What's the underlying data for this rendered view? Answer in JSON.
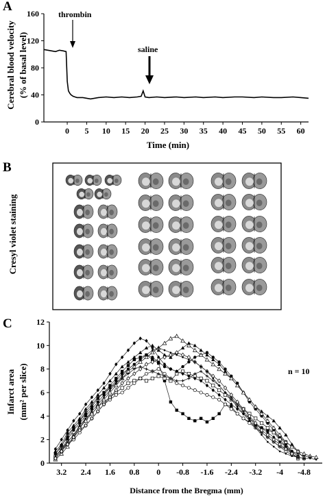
{
  "figure": {
    "panel_a": {
      "label": "A",
      "ylabel_line1": "Cerebral blood velocity",
      "ylabel_line2": "(% of basal level)",
      "xlabel": "Time (min)",
      "annotations": {
        "thrombin": "thrombin",
        "saline": "saline"
      }
    },
    "panel_b": {
      "label": "B",
      "ylabel": "Cresyl violet staining"
    },
    "panel_c": {
      "label": "C",
      "ylabel_line1": "Infarct area",
      "ylabel_line2": "(mm² per slice)",
      "xlabel": "Distance from the Bregma (mm)",
      "n_label": "n = 10"
    }
  },
  "chart_data": [
    {
      "type": "line",
      "panel": "A",
      "xlabel": "Time (min)",
      "ylabel": "Cerebral blood velocity (% of basal level)",
      "xlim": [
        -6,
        62
      ],
      "ylim": [
        0,
        160
      ],
      "xticks": [
        0,
        5,
        10,
        15,
        20,
        25,
        30,
        35,
        40,
        45,
        50,
        55,
        60
      ],
      "yticks": [
        0,
        40,
        80,
        120,
        160
      ],
      "series": [
        {
          "x": [
            -6,
            -5,
            -4,
            -3,
            -2,
            -1,
            -0.3,
            0,
            0.3,
            0.7,
            1,
            1.5,
            2,
            2.5,
            3,
            4,
            5,
            6,
            8,
            10,
            12,
            14,
            16,
            18,
            19,
            19.5,
            20,
            21,
            23,
            25,
            28,
            30,
            33,
            35,
            38,
            40,
            43,
            45,
            48,
            50,
            53,
            55,
            58,
            60,
            62
          ],
          "y": [
            107,
            106,
            105,
            104,
            106,
            105,
            104,
            60,
            46,
            42,
            40,
            38,
            37,
            36,
            36,
            36,
            35,
            34,
            36,
            37,
            36,
            37,
            36,
            37,
            38,
            46,
            37,
            36,
            37,
            36,
            37,
            36,
            37,
            36,
            37,
            36,
            37,
            37,
            36,
            37,
            36,
            36,
            37,
            36,
            35
          ]
        }
      ],
      "grid": false
    },
    {
      "type": "line",
      "panel": "C",
      "xlabel": "Distance from the Bregma (mm)",
      "ylabel": "Infarct area (mm² per slice)",
      "xlim": [
        3.6,
        -5.4
      ],
      "ylim": [
        0,
        12
      ],
      "xticks": [
        3.2,
        2.4,
        1.6,
        0.8,
        0,
        -0.8,
        -1.6,
        -2.4,
        -3.2,
        -4,
        -4.8
      ],
      "xtick_labels": [
        "3.2",
        "2.4",
        "1.6",
        "0.8",
        "0",
        "-0.8",
        "-1.6",
        "-2.4",
        "-3.2",
        "-4",
        "-4.8"
      ],
      "yticks": [
        0,
        2,
        4,
        6,
        8,
        10,
        12
      ],
      "x": [
        3.4,
        3.2,
        3.0,
        2.8,
        2.6,
        2.4,
        2.2,
        2.0,
        1.8,
        1.6,
        1.4,
        1.2,
        1.0,
        0.8,
        0.6,
        0.4,
        0.2,
        0.0,
        -0.2,
        -0.4,
        -0.6,
        -0.8,
        -1.0,
        -1.2,
        -1.4,
        -1.6,
        -1.8,
        -2.0,
        -2.2,
        -2.4,
        -2.6,
        -2.8,
        -3.0,
        -3.2,
        -3.4,
        -3.6,
        -3.8,
        -4.0,
        -4.2,
        -4.4,
        -4.6,
        -4.8,
        -5.0,
        -5.2
      ],
      "series": [
        {
          "marker": "filled-square",
          "values": [
            0.8,
            1.5,
            2.2,
            3.0,
            3.6,
            4.2,
            4.8,
            5.5,
            6.0,
            6.6,
            7.2,
            7.8,
            8.3,
            8.8,
            9.0,
            9.2,
            8.8,
            8.5,
            7.0,
            5.2,
            4.5,
            4.2,
            3.8,
            3.6,
            3.8,
            3.5,
            3.8,
            4.2,
            5.0,
            4.8,
            4.2,
            3.8,
            3.5,
            3.2,
            3.0,
            2.8,
            2.6,
            2.2,
            1.8,
            1.4,
            1.0,
            null,
            null,
            null
          ]
        },
        {
          "marker": "filled-circle",
          "values": [
            0.5,
            1.2,
            2.0,
            2.8,
            3.4,
            4.0,
            4.6,
            5.2,
            5.8,
            6.4,
            7.0,
            7.6,
            8.0,
            8.4,
            8.8,
            9.2,
            9.0,
            8.6,
            8.2,
            8.0,
            7.8,
            8.2,
            8.6,
            9.0,
            9.2,
            9.4,
            9.0,
            8.6,
            8.0,
            7.4,
            6.8,
            6.0,
            5.2,
            4.6,
            4.0,
            3.4,
            2.8,
            2.2,
            1.6,
            1.0,
            0.6,
            null,
            null,
            null
          ]
        },
        {
          "marker": "open-square",
          "values": [
            0.4,
            1.0,
            1.8,
            2.4,
            3.0,
            3.8,
            4.2,
            4.8,
            5.2,
            5.6,
            6.0,
            6.4,
            6.8,
            7.0,
            7.2,
            7.0,
            7.2,
            7.4,
            7.2,
            7.0,
            7.6,
            7.8,
            7.6,
            7.4,
            7.2,
            7.0,
            6.6,
            6.2,
            5.8,
            5.4,
            5.0,
            4.6,
            4.2,
            3.8,
            3.4,
            3.0,
            2.6,
            2.0,
            1.4,
            0.8,
            0.4,
            null,
            null,
            null
          ]
        },
        {
          "marker": "open-circle",
          "values": [
            0.6,
            1.2,
            1.6,
            2.0,
            2.6,
            3.2,
            3.8,
            4.4,
            5.0,
            5.4,
            5.8,
            6.0,
            6.4,
            6.8,
            7.2,
            7.6,
            7.8,
            8.0,
            7.6,
            7.2,
            6.8,
            6.6,
            6.4,
            6.2,
            6.0,
            5.8,
            5.6,
            5.4,
            5.0,
            4.6,
            4.2,
            3.8,
            3.4,
            3.0,
            2.6,
            2.2,
            1.8,
            1.4,
            1.0,
            0.7,
            0.5,
            0.4,
            null,
            null
          ]
        },
        {
          "marker": "filled-triangle",
          "values": [
            1.0,
            1.6,
            2.6,
            3.2,
            3.8,
            4.6,
            5.2,
            5.8,
            6.4,
            7.0,
            7.6,
            8.2,
            8.6,
            9.0,
            9.4,
            9.8,
            10.0,
            9.6,
            9.2,
            9.0,
            9.4,
            9.8,
            10.2,
            10.0,
            9.6,
            9.2,
            8.8,
            8.4,
            7.8,
            7.2,
            6.6,
            6.0,
            5.4,
            4.8,
            4.4,
            4.0,
            3.6,
            3.0,
            2.4,
            1.6,
            1.0,
            0.4,
            null,
            null
          ]
        },
        {
          "marker": "open-triangle",
          "values": [
            0.3,
            0.8,
            1.4,
            2.2,
            3.0,
            3.6,
            4.2,
            4.8,
            5.4,
            6.0,
            6.6,
            7.2,
            7.8,
            8.2,
            8.6,
            9.0,
            9.4,
            9.8,
            10.2,
            10.6,
            10.8,
            10.4,
            10.0,
            9.6,
            9.2,
            8.8,
            8.4,
            8.0,
            7.6,
            7.2,
            6.6,
            6.0,
            5.4,
            4.8,
            4.2,
            3.6,
            3.0,
            2.4,
            1.8,
            1.4,
            1.0,
            0.8,
            0.6,
            0.5
          ]
        },
        {
          "marker": "filled-diamond",
          "values": [
            1.2,
            2.0,
            2.8,
            3.6,
            4.2,
            5.0,
            5.6,
            6.2,
            6.8,
            7.6,
            8.4,
            9.0,
            9.6,
            10.2,
            10.6,
            10.4,
            9.8,
            9.0,
            8.4,
            8.0,
            7.8,
            7.6,
            7.4,
            7.2,
            7.0,
            6.6,
            6.2,
            5.8,
            5.4,
            5.0,
            4.6,
            4.2,
            3.8,
            3.4,
            3.0,
            2.6,
            2.2,
            1.8,
            1.4,
            1.0,
            0.6,
            null,
            null,
            null
          ]
        },
        {
          "marker": "plus",
          "values": [
            0.8,
            1.4,
            2.4,
            3.0,
            3.6,
            4.4,
            5.0,
            5.6,
            6.0,
            6.4,
            6.8,
            7.2,
            7.6,
            8.0,
            8.2,
            8.0,
            7.8,
            7.6,
            7.4,
            7.2,
            7.0,
            7.0,
            7.2,
            7.6,
            7.8,
            7.4,
            7.0,
            6.6,
            6.0,
            5.6,
            5.0,
            4.4,
            3.8,
            3.2,
            2.6,
            2.2,
            1.8,
            1.4,
            1.2,
            1.0,
            0.8,
            0.6,
            0.5,
            null
          ]
        },
        {
          "marker": "open-diamond",
          "values": [
            0.4,
            1.0,
            1.6,
            2.2,
            2.8,
            3.2,
            3.8,
            4.4,
            5.0,
            5.6,
            6.2,
            6.8,
            7.2,
            7.6,
            8.0,
            8.4,
            8.6,
            8.8,
            9.0,
            9.2,
            9.4,
            9.2,
            9.0,
            8.6,
            8.2,
            7.8,
            7.4,
            7.0,
            6.4,
            5.8,
            5.2,
            4.6,
            4.0,
            3.4,
            2.8,
            2.4,
            2.0,
            1.6,
            1.2,
            0.8,
            0.5,
            0.4,
            null,
            null
          ]
        },
        {
          "marker": "small-dot",
          "values": [
            0.6,
            1.2,
            1.8,
            2.4,
            3.2,
            3.8,
            4.4,
            5.0,
            5.6,
            6.2,
            6.8,
            7.4,
            8.0,
            8.4,
            8.8,
            9.2,
            9.6,
            9.8,
            9.6,
            9.4,
            9.2,
            9.0,
            8.8,
            8.6,
            8.2,
            7.8,
            7.2,
            6.6,
            6.0,
            5.4,
            4.8,
            4.2,
            3.6,
            3.0,
            2.4,
            1.8,
            1.4,
            1.0,
            0.8,
            0.6,
            0.5,
            0.4,
            0.4,
            0.3
          ]
        }
      ],
      "grid": false
    }
  ]
}
